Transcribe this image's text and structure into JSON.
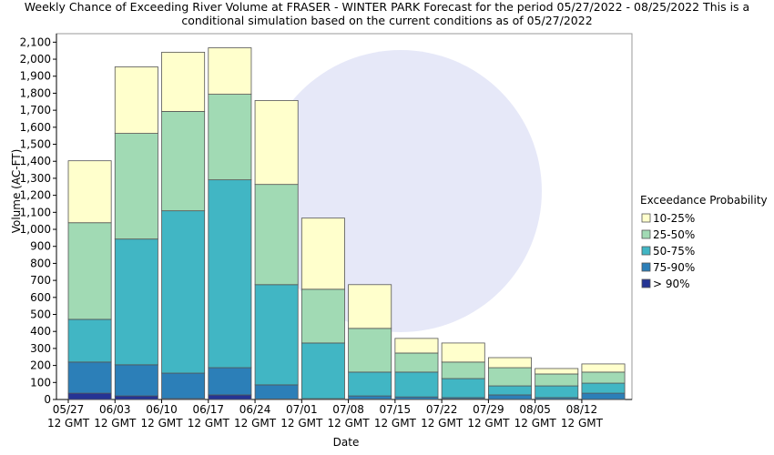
{
  "chart_data": {
    "type": "stacked-bar",
    "title": "Weekly Chance of Exceeding River Volume at FRASER - WINTER PARK Forecast for the period 05/27/2022 - 08/25/2022 This is a conditional simulation based on the current conditions as of 05/27/2022",
    "x_label": "Date",
    "y_label": "Volume (AC-FT)",
    "legend_title": "Exceedance Probability",
    "legend": "right",
    "categories": [
      "05/27 12 GMT",
      "06/03 12 GMT",
      "06/10 12 GMT",
      "06/17 12 GMT",
      "06/24 12 GMT",
      "07/01 12 GMT",
      "07/08 12 GMT",
      "07/15 12 GMT",
      "07/22 12 GMT",
      "07/29 12 GMT",
      "08/05 12 GMT",
      "08/12 12 GMT"
    ],
    "series": [
      {
        "name": "> 90%",
        "color": "#253494",
        "values": [
          37,
          21,
          5,
          27,
          3,
          2,
          2,
          1,
          3,
          1,
          1,
          1
        ]
      },
      {
        "name": "75-90%",
        "color": "#2c7fb8",
        "values": [
          183,
          183,
          150,
          160,
          83,
          3,
          19,
          14,
          8,
          26,
          10,
          36
        ]
      },
      {
        "name": "50-75%",
        "color": "#41b6c4",
        "values": [
          251,
          739,
          954,
          1104,
          589,
          327,
          140,
          146,
          112,
          53,
          69,
          59
        ]
      },
      {
        "name": "25-50%",
        "color": "#a1dab4",
        "values": [
          568,
          621,
          584,
          503,
          589,
          316,
          257,
          112,
          97,
          107,
          70,
          65
        ]
      },
      {
        "name": "10-25%",
        "color": "#ffffcc",
        "values": [
          364,
          391,
          348,
          273,
          493,
          418,
          257,
          86,
          112,
          59,
          32,
          48
        ]
      }
    ],
    "ylim": [
      0,
      2150
    ],
    "yticks": [
      0,
      100,
      200,
      300,
      400,
      500,
      600,
      700,
      800,
      900,
      {
        "value": 1000,
        "label": "1,000"
      },
      {
        "value": 1100,
        "label": "1,100"
      },
      {
        "value": 1200,
        "label": "1,200"
      },
      {
        "value": 1300,
        "label": "1,300"
      },
      {
        "value": 1400,
        "label": "1,400"
      },
      {
        "value": 1500,
        "label": "1,500"
      },
      {
        "value": 1600,
        "label": "1,600"
      },
      {
        "value": 1700,
        "label": "1,700"
      },
      {
        "value": 1800,
        "label": "1,800"
      },
      {
        "value": 1900,
        "label": "1,900"
      },
      {
        "value": 2000,
        "label": "2,000"
      },
      {
        "value": 2100,
        "label": "2,100"
      }
    ],
    "grid": false
  }
}
